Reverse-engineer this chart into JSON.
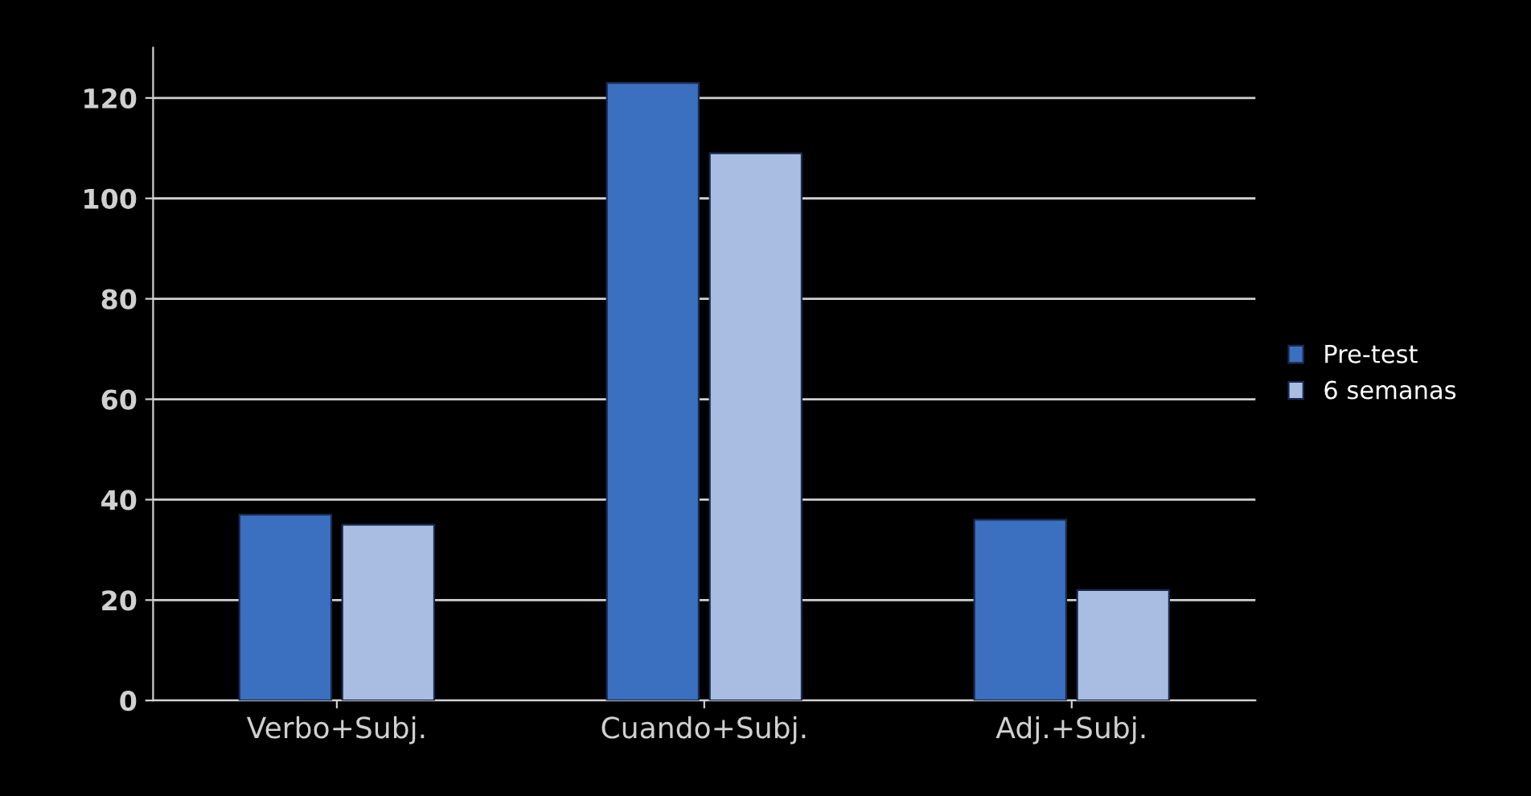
{
  "chart_data": {
    "type": "bar",
    "categories": [
      "Verbo+Subj.",
      "Cuando+Subj.",
      "Adj.+Subj."
    ],
    "series": [
      {
        "name": "Pre-test",
        "color": "#3b6fbf",
        "values": [
          37,
          123,
          36
        ]
      },
      {
        "name": "6 semanas",
        "color": "#a9bde2",
        "values": [
          35,
          109,
          22
        ]
      }
    ],
    "ylim": [
      0,
      130
    ],
    "yticks": [
      0,
      20,
      40,
      60,
      80,
      100,
      120
    ],
    "grid": "y",
    "legend": "right"
  }
}
